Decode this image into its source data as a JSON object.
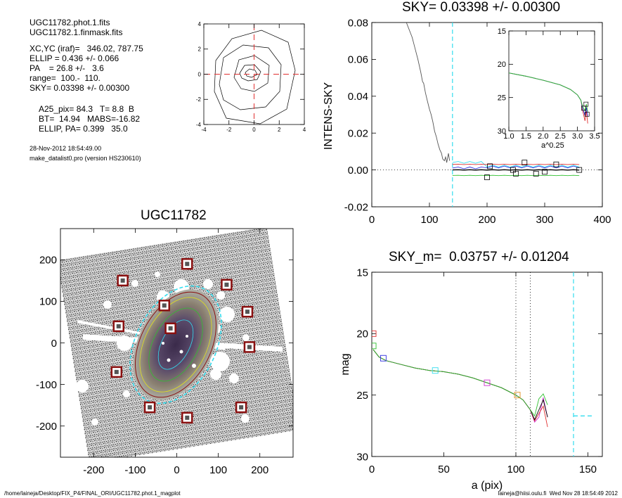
{
  "info": {
    "phot_file": "UGC11782.phot.1.fits",
    "mask_file": "UGC11782.1.finmask.fits",
    "xcyc": "XC,YC (iraf)=   346.02, 787.75",
    "ellip": "ELLIP = 0.436 +/- 0.066",
    "pa": "PA    = 26.8 +/-   3.6",
    "range": "range=  100.-  110.",
    "sky": "SKY= 0.03398 +/- 0.00300",
    "a25": "A25_pix= 84.3   T= 8.8  B",
    "bt": "BT=  14.94   MABS=-16.82",
    "ellip_pa": "ELLIP, PA= 0.399   35.0",
    "date": "28-Nov-2012 18:54:49.00",
    "program": "make_datalist0.pro (version HS230610)"
  },
  "footer": {
    "path": "/home/laineja/Desktop/FIX_P4/FINAL_ORI/UGC11782.phot.1_magplot",
    "user": "laineja@hiisi.oulu.fi  Wed Nov 28 18:54:49 2012"
  },
  "colors": {
    "cyan": "#33ddee",
    "red": "#e03030",
    "green": "#30c030",
    "blue": "#3030e0",
    "magenta": "#d030d0",
    "orange": "#e09020",
    "maroon": "#8a1010",
    "gray": "#555555"
  },
  "chart_data": [
    {
      "id": "contour",
      "type": "contour",
      "xlim": [
        -4,
        4
      ],
      "ylim": [
        -4,
        4
      ],
      "x_ticks": [
        "-4",
        "-2",
        "0",
        "2",
        "4"
      ],
      "y_ticks": [
        "-4",
        "-2",
        "0",
        "2",
        "4"
      ],
      "crosshair": [
        0,
        0
      ]
    },
    {
      "id": "sky",
      "type": "line",
      "title": "SKY= 0.03398 +/- 0.00300",
      "xlabel": "",
      "ylabel": "INTENS-SKY",
      "xlim": [
        0,
        400
      ],
      "ylim": [
        -0.02,
        0.08
      ],
      "x_ticks": [
        "0",
        "100",
        "200",
        "300",
        "400"
      ],
      "y_ticks": [
        "-0.02",
        "0.00",
        "0.02",
        "0.04",
        "0.06",
        "0.08"
      ],
      "sky_radius": 140,
      "profile": [
        [
          60,
          0.08
        ],
        [
          70,
          0.072
        ],
        [
          75,
          0.066
        ],
        [
          80,
          0.06
        ],
        [
          85,
          0.053
        ],
        [
          88,
          0.048
        ],
        [
          90,
          0.047
        ],
        [
          93,
          0.042
        ],
        [
          96,
          0.038
        ],
        [
          100,
          0.033
        ],
        [
          103,
          0.03
        ],
        [
          106,
          0.026
        ],
        [
          109,
          0.021
        ],
        [
          112,
          0.018
        ],
        [
          115,
          0.014
        ],
        [
          118,
          0.011
        ],
        [
          121,
          0.009
        ],
        [
          123,
          0.006
        ],
        [
          126,
          0.005
        ],
        [
          128,
          0.007
        ],
        [
          130,
          0.004
        ],
        [
          133,
          0.009
        ],
        [
          135,
          0.005
        ]
      ],
      "squares": [
        [
          200,
          -0.004
        ],
        [
          205,
          0.002
        ],
        [
          245,
          0.0
        ],
        [
          250,
          -0.002
        ],
        [
          265,
          0.004
        ],
        [
          285,
          -0.002
        ],
        [
          300,
          -0.001
        ],
        [
          320,
          0.003
        ],
        [
          360,
          0.0
        ]
      ],
      "inset": {
        "xlim": [
          1.0,
          3.5
        ],
        "ylim": [
          15,
          30
        ],
        "xlabel": "a^0.25",
        "x_ticks": [
          "1.0",
          "1.5",
          "2.0",
          "2.5",
          "3.0",
          "3.5"
        ],
        "y_ticks": [
          "15",
          "20",
          "25",
          "30"
        ]
      }
    },
    {
      "id": "image",
      "type": "image",
      "title": "UGC11782",
      "xlim": [
        -280,
        280
      ],
      "ylim": [
        -275,
        275
      ],
      "x_ticks": [
        "-200",
        "-100",
        "0",
        "100",
        "200"
      ],
      "y_ticks": [
        "200",
        "100",
        "0",
        "-100",
        "-200"
      ],
      "boxes": [
        [
          25,
          190
        ],
        [
          -130,
          150
        ],
        [
          120,
          140
        ],
        [
          -30,
          90
        ],
        [
          170,
          75
        ],
        [
          -140,
          40
        ],
        [
          -15,
          35
        ],
        [
          175,
          -10
        ],
        [
          -145,
          -70
        ],
        [
          -65,
          -155
        ],
        [
          25,
          -180
        ],
        [
          155,
          -155
        ]
      ]
    },
    {
      "id": "mag",
      "type": "line",
      "title": "SKY_m=  0.03757 +/- 0.01204",
      "xlabel": "a (pix)",
      "ylabel": "mag",
      "xlim": [
        0,
        160
      ],
      "ylim": [
        30,
        15
      ],
      "x_ticks": [
        "0",
        "50",
        "100",
        "150"
      ],
      "y_ticks": [
        "15",
        "20",
        "25",
        "30"
      ],
      "range_lines": [
        100,
        110
      ],
      "sky_radius": 140,
      "sky_mark": [
        [
          140,
          26.7
        ],
        [
          153,
          26.7
        ]
      ],
      "profile": [
        [
          1,
          21.3
        ],
        [
          5,
          21.9
        ],
        [
          10,
          22.2
        ],
        [
          20,
          22.5
        ],
        [
          30,
          22.8
        ],
        [
          40,
          23.0
        ],
        [
          50,
          23.1
        ],
        [
          60,
          23.3
        ],
        [
          70,
          23.6
        ],
        [
          80,
          24.0
        ],
        [
          90,
          24.4
        ],
        [
          100,
          25.0
        ],
        [
          105,
          25.4
        ],
        [
          110,
          26.2
        ],
        [
          113,
          26.9
        ],
        [
          116,
          25.9
        ],
        [
          119,
          25.3
        ],
        [
          122,
          26.4
        ]
      ],
      "squares": [
        {
          "x": 1,
          "y": 20.0,
          "c": "red"
        },
        {
          "x": 1,
          "y": 21.0,
          "c": "green"
        },
        {
          "x": 8,
          "y": 22.0,
          "c": "blue"
        },
        {
          "x": 44,
          "y": 23.0,
          "c": "cyan"
        },
        {
          "x": 80,
          "y": 24.0,
          "c": "magenta"
        },
        {
          "x": 101,
          "y": 25.0,
          "c": "orange"
        }
      ]
    }
  ]
}
